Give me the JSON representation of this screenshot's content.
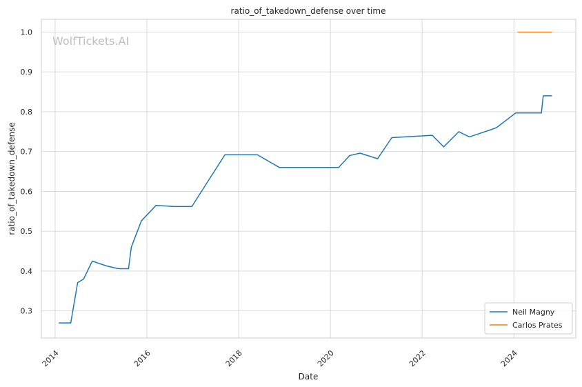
{
  "chart_data": {
    "type": "line",
    "title": "ratio_of_takedown_defense over time",
    "xlabel": "Date",
    "ylabel": "ratio_of_takedown_defense",
    "watermark": "WolfTickets.AI",
    "xlim": [
      2013.7,
      2025.35
    ],
    "ylim": [
      0.232,
      1.032
    ],
    "x_ticks": [
      2014,
      2016,
      2018,
      2020,
      2022,
      2024
    ],
    "y_ticks": [
      0.3,
      0.4,
      0.5,
      0.6,
      0.7,
      0.8,
      0.9,
      1.0
    ],
    "y_tick_labels": [
      "0.3",
      "0.4",
      "0.5",
      "0.6",
      "0.7",
      "0.8",
      "0.9",
      "1.0"
    ],
    "grid": true,
    "legend_position": "bottom-right",
    "series": [
      {
        "name": "Neil Magny",
        "color": "#1f77b4",
        "x": [
          2014.08,
          2014.34,
          2014.49,
          2014.62,
          2014.81,
          2015.12,
          2015.38,
          2015.6,
          2015.66,
          2015.88,
          2016.2,
          2016.6,
          2016.98,
          2017.7,
          2018.41,
          2018.89,
          2020.18,
          2020.42,
          2020.65,
          2021.03,
          2021.34,
          2022.22,
          2022.47,
          2022.8,
          2023.03,
          2023.5,
          2023.62,
          2024.04,
          2024.6,
          2024.64,
          2024.83
        ],
        "y": [
          0.27,
          0.27,
          0.371,
          0.38,
          0.425,
          0.413,
          0.406,
          0.406,
          0.46,
          0.526,
          0.565,
          0.562,
          0.562,
          0.692,
          0.692,
          0.66,
          0.66,
          0.69,
          0.696,
          0.682,
          0.735,
          0.741,
          0.712,
          0.75,
          0.737,
          0.755,
          0.76,
          0.797,
          0.797,
          0.84,
          0.84
        ]
      },
      {
        "name": "Carlos Prates",
        "color": "#ff7f0e",
        "x": [
          2024.08,
          2024.83
        ],
        "y": [
          1.0,
          1.0
        ]
      }
    ]
  }
}
